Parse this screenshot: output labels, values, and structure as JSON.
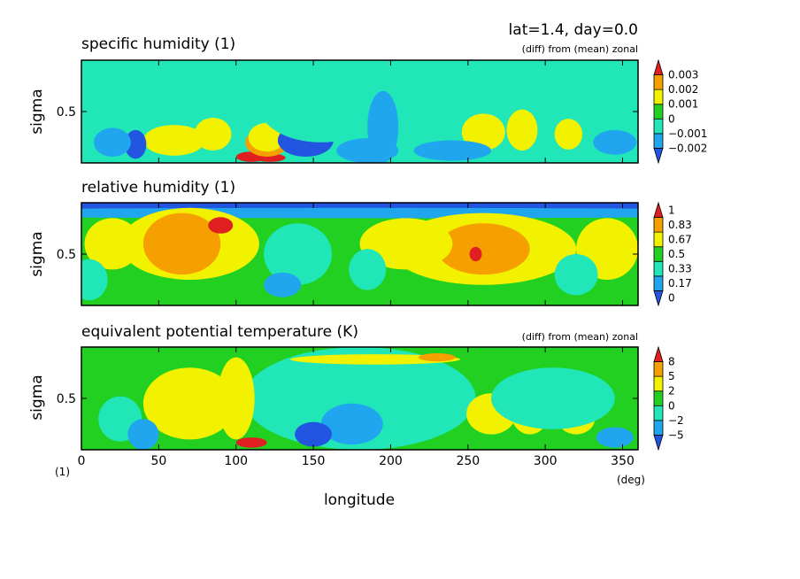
{
  "header": {
    "info": "lat=1.4, day=0.0"
  },
  "xaxis": {
    "label": "longitude",
    "unit": "(deg)",
    "corner_unit": "(1)",
    "range": [
      0,
      360
    ],
    "ticks": [
      0,
      50,
      100,
      150,
      200,
      250,
      300,
      350
    ]
  },
  "chart_data": [
    {
      "type": "heatmap",
      "title": "specific humidity (1)",
      "subtitle": "(diff) from (mean) zonal",
      "ylabel": "sigma",
      "xlim": [
        0,
        360
      ],
      "ylim": [
        0,
        1
      ],
      "y_ticks": [
        0.5
      ],
      "colorbar": {
        "labels": [
          "0.003",
          "0.002",
          "0.001",
          "0",
          "−0.001",
          "−0.002"
        ],
        "levels": [
          -0.002,
          -0.001,
          0,
          0.001,
          0.002,
          0.003
        ],
        "colors": [
          "#2255e0",
          "#1fa6ee",
          "#20e6b8",
          "#22d022",
          "#f2f200",
          "#f5a000",
          "#e02020"
        ]
      },
      "background_level": 2,
      "blobs": [
        {
          "lon": 60,
          "s": 0.22,
          "a": 20,
          "b": 0.15,
          "lvl": 4
        },
        {
          "lon": 85,
          "s": 0.28,
          "a": 12,
          "b": 0.16,
          "lvl": 4
        },
        {
          "lon": 110,
          "s": 0.06,
          "a": 10,
          "b": 0.05,
          "lvl": 6
        },
        {
          "lon": 122,
          "s": 0.05,
          "a": 10,
          "b": 0.04,
          "lvl": 6
        },
        {
          "lon": 120,
          "s": 0.2,
          "a": 14,
          "b": 0.14,
          "lvl": 5
        },
        {
          "lon": 120,
          "s": 0.25,
          "a": 12,
          "b": 0.14,
          "lvl": 4
        },
        {
          "lon": 35,
          "s": 0.18,
          "a": 7,
          "b": 0.14,
          "lvl": 0
        },
        {
          "lon": 20,
          "s": 0.2,
          "a": 12,
          "b": 0.14,
          "lvl": 1
        },
        {
          "lon": 145,
          "s": 0.22,
          "a": 18,
          "b": 0.16,
          "lvl": 0
        },
        {
          "lon": 155,
          "s": 0.55,
          "a": 40,
          "b": 0.35,
          "lvl": 2
        },
        {
          "lon": 185,
          "s": 0.12,
          "a": 20,
          "b": 0.12,
          "lvl": 1
        },
        {
          "lon": 195,
          "s": 0.35,
          "a": 10,
          "b": 0.35,
          "lvl": 1
        },
        {
          "lon": 260,
          "s": 0.3,
          "a": 14,
          "b": 0.18,
          "lvl": 4
        },
        {
          "lon": 285,
          "s": 0.32,
          "a": 10,
          "b": 0.2,
          "lvl": 4
        },
        {
          "lon": 315,
          "s": 0.28,
          "a": 9,
          "b": 0.15,
          "lvl": 4
        },
        {
          "lon": 255,
          "s": 0.8,
          "a": 60,
          "b": 0.25,
          "lvl": 2
        },
        {
          "lon": 320,
          "s": 0.7,
          "a": 40,
          "b": 0.2,
          "lvl": 2
        },
        {
          "lon": 240,
          "s": 0.12,
          "a": 25,
          "b": 0.1,
          "lvl": 1
        },
        {
          "lon": 345,
          "s": 0.2,
          "a": 14,
          "b": 0.12,
          "lvl": 1
        }
      ]
    },
    {
      "type": "heatmap",
      "title": "relative humidity (1)",
      "subtitle": "",
      "ylabel": "sigma",
      "xlim": [
        0,
        360
      ],
      "ylim": [
        0,
        1
      ],
      "y_ticks": [
        0.5
      ],
      "colorbar": {
        "labels": [
          "1",
          "0.83",
          "0.67",
          "0.5",
          "0.33",
          "0.17",
          "0"
        ],
        "levels": [
          0,
          0.17,
          0.33,
          0.5,
          0.67,
          0.83,
          1
        ],
        "colors": [
          "#2255e0",
          "#1fa6ee",
          "#20e6b8",
          "#22d022",
          "#f2f200",
          "#f5a000",
          "#e02020"
        ]
      },
      "background_level": 3,
      "blobs": [
        {
          "lon": 180,
          "s": 0.97,
          "a": 360,
          "b": 0.05,
          "lvl": 0
        },
        {
          "lon": 180,
          "s": 0.9,
          "a": 360,
          "b": 0.05,
          "lvl": 1
        },
        {
          "lon": 70,
          "s": 0.6,
          "a": 45,
          "b": 0.35,
          "lvl": 4
        },
        {
          "lon": 65,
          "s": 0.6,
          "a": 25,
          "b": 0.3,
          "lvl": 5
        },
        {
          "lon": 90,
          "s": 0.78,
          "a": 8,
          "b": 0.08,
          "lvl": 6
        },
        {
          "lon": 20,
          "s": 0.6,
          "a": 18,
          "b": 0.25,
          "lvl": 4
        },
        {
          "lon": 140,
          "s": 0.5,
          "a": 22,
          "b": 0.3,
          "lvl": 2
        },
        {
          "lon": 130,
          "s": 0.2,
          "a": 12,
          "b": 0.12,
          "lvl": 1
        },
        {
          "lon": 260,
          "s": 0.55,
          "a": 60,
          "b": 0.35,
          "lvl": 4
        },
        {
          "lon": 260,
          "s": 0.55,
          "a": 30,
          "b": 0.25,
          "lvl": 5
        },
        {
          "lon": 255,
          "s": 0.5,
          "a": 4,
          "b": 0.07,
          "lvl": 6
        },
        {
          "lon": 340,
          "s": 0.55,
          "a": 20,
          "b": 0.3,
          "lvl": 4
        },
        {
          "lon": 210,
          "s": 0.6,
          "a": 30,
          "b": 0.25,
          "lvl": 4
        },
        {
          "lon": 185,
          "s": 0.35,
          "a": 12,
          "b": 0.2,
          "lvl": 2
        },
        {
          "lon": 320,
          "s": 0.3,
          "a": 14,
          "b": 0.2,
          "lvl": 2
        },
        {
          "lon": 5,
          "s": 0.25,
          "a": 12,
          "b": 0.2,
          "lvl": 2
        }
      ]
    },
    {
      "type": "heatmap",
      "title": "equivalent potential temperature (K)",
      "subtitle": "(diff) from (mean) zonal",
      "ylabel": "sigma",
      "xlim": [
        0,
        360
      ],
      "ylim": [
        0,
        1
      ],
      "y_ticks": [
        0.5
      ],
      "colorbar": {
        "labels": [
          "8",
          "5",
          "2",
          "0",
          "−2",
          "−5"
        ],
        "levels": [
          -5,
          -2,
          0,
          2,
          5,
          8
        ],
        "colors": [
          "#2255e0",
          "#1fa6ee",
          "#20e6b8",
          "#22d022",
          "#f2f200",
          "#f5a000",
          "#e02020"
        ]
      },
      "background_level": 3,
      "blobs": [
        {
          "lon": 180,
          "s": 0.5,
          "a": 75,
          "b": 0.5,
          "lvl": 2
        },
        {
          "lon": 175,
          "s": 0.25,
          "a": 20,
          "b": 0.2,
          "lvl": 1
        },
        {
          "lon": 150,
          "s": 0.15,
          "a": 12,
          "b": 0.12,
          "lvl": 0
        },
        {
          "lon": 70,
          "s": 0.45,
          "a": 30,
          "b": 0.35,
          "lvl": 4
        },
        {
          "lon": 100,
          "s": 0.5,
          "a": 12,
          "b": 0.4,
          "lvl": 4
        },
        {
          "lon": 110,
          "s": 0.07,
          "a": 10,
          "b": 0.05,
          "lvl": 6
        },
        {
          "lon": 25,
          "s": 0.3,
          "a": 14,
          "b": 0.22,
          "lvl": 2
        },
        {
          "lon": 40,
          "s": 0.15,
          "a": 10,
          "b": 0.15,
          "lvl": 1
        },
        {
          "lon": 190,
          "s": 0.88,
          "a": 55,
          "b": 0.05,
          "lvl": 4
        },
        {
          "lon": 230,
          "s": 0.9,
          "a": 12,
          "b": 0.04,
          "lvl": 5
        },
        {
          "lon": 265,
          "s": 0.35,
          "a": 16,
          "b": 0.2,
          "lvl": 4
        },
        {
          "lon": 290,
          "s": 0.35,
          "a": 12,
          "b": 0.2,
          "lvl": 4
        },
        {
          "lon": 320,
          "s": 0.3,
          "a": 12,
          "b": 0.15,
          "lvl": 4
        },
        {
          "lon": 305,
          "s": 0.5,
          "a": 40,
          "b": 0.3,
          "lvl": 2
        },
        {
          "lon": 345,
          "s": 0.12,
          "a": 12,
          "b": 0.1,
          "lvl": 1
        }
      ]
    }
  ]
}
